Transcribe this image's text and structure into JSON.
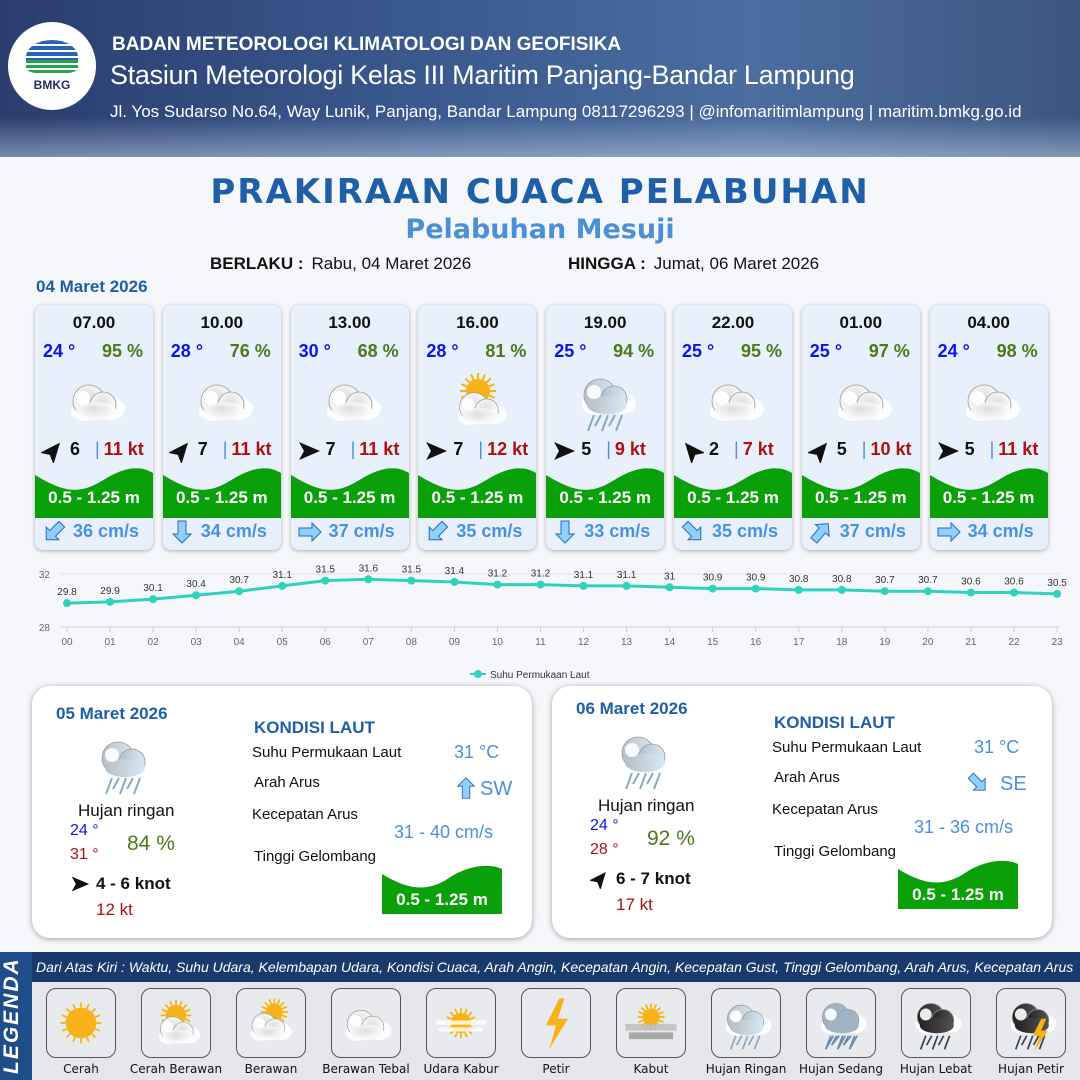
{
  "header": {
    "logo_text": "BMKG",
    "agency": "BADAN METEOROLOGI KLIMATOLOGI DAN GEOFISIKA",
    "station": "Stasiun Meteorologi Kelas III Maritim Panjang-Bandar Lampung",
    "contact": "Jl. Yos Sudarso No.64, Way Lunik, Panjang, Bandar Lampung 08117296293 | @infomaritimlampung | maritim.bmkg.go.id"
  },
  "title": "PRAKIRAAN CUACA PELABUHAN",
  "subtitle": "Pelabuhan Mesuji",
  "validity": {
    "from_label": "BERLAKU :",
    "from": "Rabu, 04 Maret 2026",
    "to_label": "HINGGA :",
    "to": "Jumat, 06 Maret 2026"
  },
  "day1": {
    "date": "04 Maret 2026",
    "cards": [
      {
        "time": "07.00",
        "temp": "24 °",
        "hum": "95 %",
        "weather": "berawan-tebal",
        "wind_dir": "NE",
        "wind": "6",
        "gust": "11 kt",
        "wave": "0.5 - 1.25 m",
        "cur_dir": "SW",
        "cur": "36 cm/s"
      },
      {
        "time": "10.00",
        "temp": "28 °",
        "hum": "76 %",
        "weather": "berawan-tebal",
        "wind_dir": "NE",
        "wind": "7",
        "gust": "11 kt",
        "wave": "0.5 - 1.25 m",
        "cur_dir": "S",
        "cur": "34 cm/s"
      },
      {
        "time": "13.00",
        "temp": "30 °",
        "hum": "68 %",
        "weather": "berawan-tebal",
        "wind_dir": "E",
        "wind": "7",
        "gust": "11 kt",
        "wave": "0.5 - 1.25 m",
        "cur_dir": "E",
        "cur": "37 cm/s"
      },
      {
        "time": "16.00",
        "temp": "28 °",
        "hum": "81 %",
        "weather": "cerah-berawan",
        "wind_dir": "E",
        "wind": "7",
        "gust": "12 kt",
        "wave": "0.5 - 1.25 m",
        "cur_dir": "SW",
        "cur": "35 cm/s"
      },
      {
        "time": "19.00",
        "temp": "25 °",
        "hum": "94 %",
        "weather": "hujan-ringan",
        "wind_dir": "E",
        "wind": "5",
        "gust": "9 kt",
        "wave": "0.5 - 1.25 m",
        "cur_dir": "S",
        "cur": "33 cm/s"
      },
      {
        "time": "22.00",
        "temp": "25 °",
        "hum": "95 %",
        "weather": "berawan-tebal",
        "wind_dir": "NW",
        "wind": "2",
        "gust": "7 kt",
        "wave": "0.5 - 1.25 m",
        "cur_dir": "SE",
        "cur": "35 cm/s"
      },
      {
        "time": "01.00",
        "temp": "25 °",
        "hum": "97 %",
        "weather": "berawan-tebal",
        "wind_dir": "NE",
        "wind": "5",
        "gust": "10 kt",
        "wave": "0.5 - 1.25 m",
        "cur_dir": "NE",
        "cur": "37 cm/s"
      },
      {
        "time": "04.00",
        "temp": "24 °",
        "hum": "98 %",
        "weather": "berawan-tebal",
        "wind_dir": "E",
        "wind": "5",
        "gust": "11 kt",
        "wave": "0.5 - 1.25 m",
        "cur_dir": "E",
        "cur": "34 cm/s"
      }
    ]
  },
  "chart_data": {
    "type": "line",
    "x": [
      "00",
      "01",
      "02",
      "03",
      "04",
      "05",
      "06",
      "07",
      "08",
      "09",
      "10",
      "11",
      "12",
      "13",
      "14",
      "15",
      "16",
      "17",
      "18",
      "19",
      "20",
      "21",
      "22",
      "23"
    ],
    "series": [
      {
        "name": "Suhu Permukaan Laut",
        "values": [
          29.8,
          29.9,
          30.1,
          30.4,
          30.7,
          31.1,
          31.5,
          31.6,
          31.5,
          31.4,
          31.2,
          31.2,
          31.1,
          31.1,
          31.0,
          30.9,
          30.9,
          30.8,
          30.8,
          30.7,
          30.7,
          30.6,
          30.6,
          30.5
        ]
      }
    ],
    "y_ticks": [
      "32",
      "28"
    ],
    "ylim": [
      28,
      32
    ],
    "legend": "bottom",
    "color": "#2ed3c0"
  },
  "panels": [
    {
      "date": "05 Maret 2026",
      "weather": "Hujan ringan",
      "tmin": "24 °",
      "tmax": "31 °",
      "hum": "84 %",
      "wind_dir": "E",
      "wind": "4 - 6 knot",
      "gust": "12 kt",
      "sea_title": "KONDISI LAUT",
      "sst_label": "Suhu Permukaan Laut",
      "sst": "31 °C",
      "cur_dir_label": "Arah Arus",
      "cur_dir": "SW",
      "cur_speed_label": "Kecepatan Arus",
      "cur_speed": "31 - 40 cm/s",
      "wave_label": "Tinggi Gelombang",
      "wave": "0.5 - 1.25 m"
    },
    {
      "date": "06 Maret 2026",
      "weather": "Hujan ringan",
      "tmin": "24 °",
      "tmax": "28 °",
      "hum": "92 %",
      "wind_dir": "NE",
      "wind": "6 - 7 knot",
      "gust": "17 kt",
      "sea_title": "KONDISI LAUT",
      "sst_label": "Suhu Permukaan Laut",
      "sst": "31 °C",
      "cur_dir_label": "Arah Arus",
      "cur_dir": "SE",
      "cur_speed_label": "Kecepatan Arus",
      "cur_speed": "31 - 36 cm/s",
      "wave_label": "Tinggi Gelombang",
      "wave": "0.5 - 1.25 m"
    }
  ],
  "legend": {
    "title": "LEGENDA",
    "description": "Dari Atas Kiri : Waktu, Suhu Udara, Kelembapan Udara, Kondisi Cuaca, Arah Angin, Kecepatan Angin, Kecepatan Gust, Tinggi Gelombang, Arah Arus, Kecepatan Arus",
    "items": [
      {
        "label": "Cerah",
        "icon": "cerah"
      },
      {
        "label": "Cerah Berawan",
        "icon": "cerah-berawan"
      },
      {
        "label": "Berawan",
        "icon": "berawan"
      },
      {
        "label": "Berawan Tebal",
        "icon": "berawan-tebal"
      },
      {
        "label": "Udara Kabur",
        "icon": "udara-kabur"
      },
      {
        "label": "Petir",
        "icon": "petir"
      },
      {
        "label": "Kabut",
        "icon": "kabut"
      },
      {
        "label": "Hujan Ringan",
        "icon": "hujan-ringan"
      },
      {
        "label": "Hujan Sedang",
        "icon": "hujan-sedang"
      },
      {
        "label": "Hujan Lebat",
        "icon": "hujan-lebat"
      },
      {
        "label": "Hujan Petir",
        "icon": "hujan-petir"
      }
    ]
  },
  "colors": {
    "title": "#1f5fa8",
    "temp": "#0a14f0",
    "humidity": "#4a7a1a",
    "gust": "#b01010",
    "wave": "#0aa00a",
    "current": "#4a90e2",
    "header": "#2a3d6e"
  }
}
